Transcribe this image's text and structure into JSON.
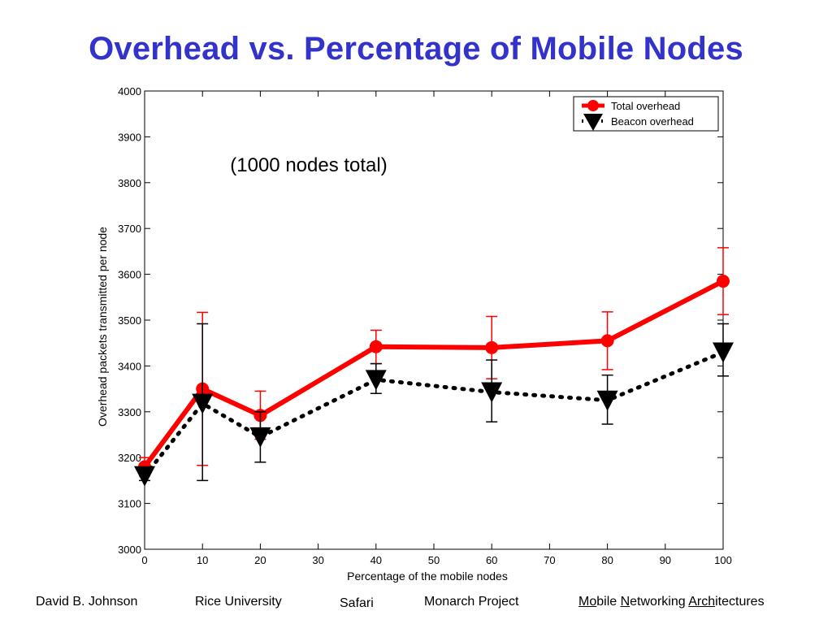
{
  "slide": {
    "title": "Overhead vs. Percentage of Mobile Nodes",
    "annotation": "(1000 nodes total)"
  },
  "footer": {
    "author": "David B. Johnson",
    "institution": "Rice University",
    "safari": "Safari",
    "project": "Monarch Project",
    "tagline_parts": [
      {
        "text": "Mo",
        "underline": true
      },
      {
        "text": "bile ",
        "underline": false
      },
      {
        "text": "N",
        "underline": true
      },
      {
        "text": "etworking ",
        "underline": false
      },
      {
        "text": "Arch",
        "underline": true
      },
      {
        "text": "itectures",
        "underline": false
      }
    ]
  },
  "chart_data": {
    "type": "line",
    "xlabel": "Percentage of the mobile nodes",
    "ylabel": "Overhead packets transmitted per node",
    "xlim": [
      0,
      100
    ],
    "ylim": [
      3000,
      4000
    ],
    "xticks": [
      0,
      10,
      20,
      30,
      40,
      50,
      60,
      70,
      80,
      90,
      100
    ],
    "yticks": [
      3000,
      3100,
      3200,
      3300,
      3400,
      3500,
      3600,
      3700,
      3800,
      3900,
      4000
    ],
    "grid": false,
    "legend_position": "top-right",
    "x": [
      0,
      10,
      20,
      40,
      60,
      80,
      100
    ],
    "series": [
      {
        "name": "Total overhead",
        "color": "#ff0000",
        "line_style": "solid",
        "marker": "circle",
        "values": [
          3180,
          3350,
          3292,
          3442,
          3440,
          3455,
          3585
        ],
        "error_low": [
          3160,
          3183,
          3240,
          3405,
          3372,
          3392,
          3512
        ],
        "error_high": [
          3200,
          3517,
          3345,
          3478,
          3508,
          3518,
          3658
        ]
      },
      {
        "name": "Beacon overhead",
        "color": "#000000",
        "line_style": "dotted",
        "marker": "triangle-down",
        "values": [
          3160,
          3318,
          3245,
          3370,
          3343,
          3325,
          3430
        ],
        "error_low": [
          3150,
          3150,
          3190,
          3340,
          3278,
          3273,
          3378
        ],
        "error_high": [
          3170,
          3492,
          3300,
          3405,
          3413,
          3380,
          3492
        ]
      }
    ]
  }
}
